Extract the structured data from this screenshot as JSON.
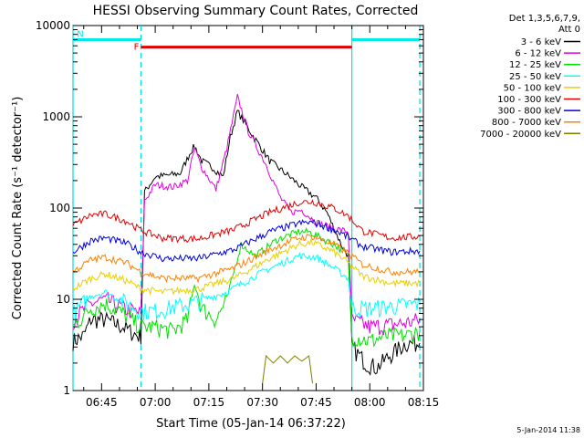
{
  "chart_data": {
    "type": "line",
    "title": "HESSI Observing Summary Count Rates, Corrected",
    "xlabel": "Start Time (05-Jan-14 06:37:22)",
    "ylabel": "Corrected Count Rate (s⁻¹ detector⁻¹)",
    "yscale": "log",
    "ylim": [
      1,
      10000
    ],
    "xlim_minutes": [
      37,
      135
    ],
    "y_ticks": [
      {
        "value": 1,
        "label": "1"
      },
      {
        "value": 10,
        "label": "10"
      },
      {
        "value": 100,
        "label": "100"
      },
      {
        "value": 1000,
        "label": "1000"
      },
      {
        "value": 10000,
        "label": "10000"
      }
    ],
    "x_ticks": [
      {
        "minutes": 45,
        "label": "06:45"
      },
      {
        "minutes": 60,
        "label": "07:00"
      },
      {
        "minutes": 75,
        "label": "07:15"
      },
      {
        "minutes": 90,
        "label": "07:30"
      },
      {
        "minutes": 105,
        "label": "07:45"
      },
      {
        "minutes": 120,
        "label": "08:00"
      },
      {
        "minutes": 135,
        "label": "08:15"
      }
    ],
    "legend_header": [
      "Det 1,3,5,6,7,9,",
      "Att 0"
    ],
    "legend_position": "right",
    "series": [
      {
        "name": "3 - 6 keV",
        "color": "#000000",
        "points": [
          [
            37,
            3.5
          ],
          [
            40,
            4
          ],
          [
            42,
            6
          ],
          [
            46,
            6
          ],
          [
            51,
            5
          ],
          [
            55,
            4
          ],
          [
            56,
            4
          ],
          [
            57,
            150
          ],
          [
            60,
            220
          ],
          [
            64,
            230
          ],
          [
            67,
            240
          ],
          [
            70,
            420
          ],
          [
            71,
            480
          ],
          [
            73,
            330
          ],
          [
            76,
            280
          ],
          [
            79,
            220
          ],
          [
            81,
            600
          ],
          [
            83,
            1150
          ],
          [
            87,
            650
          ],
          [
            92,
            330
          ],
          [
            97,
            230
          ],
          [
            101,
            170
          ],
          [
            105,
            130
          ],
          [
            108,
            90
          ],
          [
            110,
            60
          ],
          [
            112,
            40
          ],
          [
            114,
            30
          ],
          [
            115,
            3
          ],
          [
            119,
            2
          ],
          [
            122,
            1.8
          ],
          [
            126,
            2.5
          ],
          [
            130,
            3.3
          ],
          [
            134,
            3.3
          ]
        ]
      },
      {
        "name": "6 - 12 keV",
        "color": "#e000e0",
        "points": [
          [
            37,
            6
          ],
          [
            42,
            9
          ],
          [
            46,
            10
          ],
          [
            51,
            8
          ],
          [
            56,
            7
          ],
          [
            57,
            120
          ],
          [
            60,
            180
          ],
          [
            65,
            170
          ],
          [
            69,
            200
          ],
          [
            71,
            450
          ],
          [
            73,
            280
          ],
          [
            77,
            160
          ],
          [
            80,
            450
          ],
          [
            83,
            1650
          ],
          [
            86,
            700
          ],
          [
            91,
            300
          ],
          [
            95,
            130
          ],
          [
            98,
            90
          ],
          [
            101,
            95
          ],
          [
            105,
            70
          ],
          [
            110,
            60
          ],
          [
            114,
            55
          ],
          [
            115,
            6
          ],
          [
            120,
            5
          ],
          [
            130,
            5.5
          ],
          [
            134,
            6
          ]
        ]
      },
      {
        "name": "12 - 25 keV",
        "color": "#00e000",
        "points": [
          [
            37,
            5
          ],
          [
            42,
            8
          ],
          [
            46,
            9
          ],
          [
            51,
            7
          ],
          [
            56,
            5
          ],
          [
            60,
            5
          ],
          [
            65,
            4.5
          ],
          [
            69,
            6
          ],
          [
            71,
            15
          ],
          [
            73,
            8
          ],
          [
            77,
            6
          ],
          [
            80,
            10
          ],
          [
            82,
            20
          ],
          [
            84,
            40
          ],
          [
            88,
            30
          ],
          [
            94,
            45
          ],
          [
            100,
            55
          ],
          [
            103,
            55
          ],
          [
            106,
            48
          ],
          [
            110,
            40
          ],
          [
            114,
            30
          ],
          [
            115,
            4
          ],
          [
            120,
            3.5
          ],
          [
            125,
            4
          ],
          [
            130,
            4
          ],
          [
            134,
            4.5
          ]
        ]
      },
      {
        "name": "25 - 50 keV",
        "color": "#00ffff",
        "points": [
          [
            37,
            7
          ],
          [
            42,
            11
          ],
          [
            46,
            12
          ],
          [
            50,
            10
          ],
          [
            56,
            7.5
          ],
          [
            60,
            7.5
          ],
          [
            70,
            9
          ],
          [
            80,
            12
          ],
          [
            90,
            20
          ],
          [
            100,
            30
          ],
          [
            105,
            29
          ],
          [
            110,
            22
          ],
          [
            114,
            17
          ],
          [
            115,
            8
          ],
          [
            120,
            8
          ],
          [
            128,
            8.5
          ],
          [
            134,
            9
          ]
        ]
      },
      {
        "name": "50 - 100 keV",
        "color": "#e8d000",
        "points": [
          [
            37,
            13
          ],
          [
            42,
            17
          ],
          [
            46,
            19
          ],
          [
            52,
            16
          ],
          [
            56,
            13
          ],
          [
            62,
            12
          ],
          [
            72,
            13
          ],
          [
            82,
            17
          ],
          [
            92,
            28
          ],
          [
            100,
            40
          ],
          [
            104,
            42
          ],
          [
            110,
            33
          ],
          [
            114,
            25
          ],
          [
            118,
            18
          ],
          [
            126,
            15
          ],
          [
            134,
            15
          ]
        ]
      },
      {
        "name": "100 - 300 keV",
        "color": "#e00000",
        "points": [
          [
            37,
            65
          ],
          [
            42,
            84
          ],
          [
            46,
            86
          ],
          [
            52,
            72
          ],
          [
            56,
            57
          ],
          [
            62,
            47
          ],
          [
            72,
            46
          ],
          [
            82,
            58
          ],
          [
            92,
            90
          ],
          [
            100,
            115
          ],
          [
            104,
            118
          ],
          [
            110,
            100
          ],
          [
            114,
            82
          ],
          [
            118,
            56
          ],
          [
            126,
            47
          ],
          [
            134,
            49
          ]
        ]
      },
      {
        "name": "300 - 800 keV",
        "color": "#0000e0",
        "points": [
          [
            37,
            33
          ],
          [
            42,
            44
          ],
          [
            46,
            47
          ],
          [
            52,
            41
          ],
          [
            56,
            33
          ],
          [
            62,
            28
          ],
          [
            72,
            28
          ],
          [
            82,
            35
          ],
          [
            92,
            55
          ],
          [
            100,
            68
          ],
          [
            104,
            70
          ],
          [
            110,
            58
          ],
          [
            114,
            48
          ],
          [
            118,
            38
          ],
          [
            126,
            33
          ],
          [
            134,
            34
          ]
        ]
      },
      {
        "name": "800 - 7000 keV",
        "color": "#ff8000",
        "points": [
          [
            37,
            20
          ],
          [
            42,
            27
          ],
          [
            46,
            29
          ],
          [
            52,
            25
          ],
          [
            56,
            20
          ],
          [
            62,
            17
          ],
          [
            72,
            17
          ],
          [
            82,
            22
          ],
          [
            92,
            35
          ],
          [
            100,
            47
          ],
          [
            104,
            49
          ],
          [
            110,
            40
          ],
          [
            114,
            32
          ],
          [
            118,
            24
          ],
          [
            126,
            20
          ],
          [
            134,
            20
          ]
        ]
      },
      {
        "name": "7000 - 20000 keV",
        "color": "#808000",
        "points": [
          [
            90,
            1.2
          ],
          [
            91,
            2.4
          ],
          [
            93,
            2
          ],
          [
            95,
            2.4
          ],
          [
            97,
            2
          ],
          [
            99,
            2.4
          ],
          [
            101,
            2.1
          ],
          [
            103,
            2.4
          ],
          [
            104,
            1.2
          ]
        ]
      }
    ],
    "flag_bars": [
      {
        "name": "F",
        "color": "#e00000",
        "from": 56,
        "to": 115,
        "value": 5800
      },
      {
        "name": "N",
        "color": "#00e8e8",
        "from": 37,
        "to": 56,
        "value": 7000
      },
      {
        "name": "",
        "color": "#00e8e8",
        "from": 115,
        "to": 134,
        "value": 7000
      }
    ],
    "night_markers_solid": [
      37,
      115
    ],
    "night_markers_dashed": [
      56,
      134
    ]
  },
  "footer_date": "5-Jan-2014 11:38"
}
